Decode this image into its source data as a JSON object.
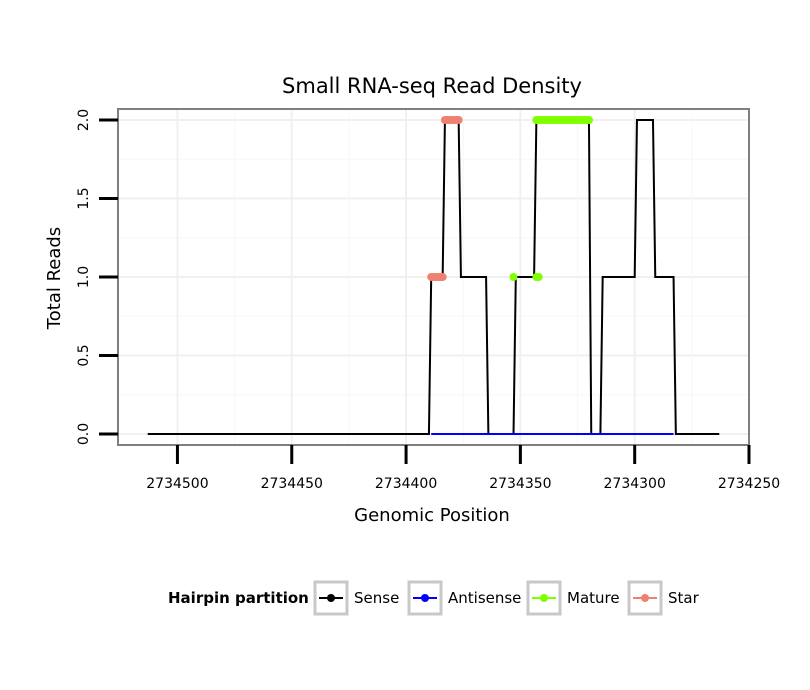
{
  "chart_data": {
    "type": "line",
    "title": "Small RNA-seq Read Density",
    "xlabel": "Genomic Position",
    "ylabel": "Total Reads",
    "x_reversed": true,
    "xlim": [
      2734526,
      2734250
    ],
    "ylim": [
      -0.07,
      2.07
    ],
    "x_ticks": [
      2734500,
      2734450,
      2734400,
      2734350,
      2734300,
      2734250
    ],
    "x_tick_labels": [
      "2734500",
      "2734450",
      "2734400",
      "2734350",
      "2734300",
      "2734250"
    ],
    "y_ticks": [
      0.0,
      0.5,
      1.0,
      1.5,
      2.0
    ],
    "y_tick_labels": [
      "0.0",
      "0.5",
      "1.0",
      "1.5",
      "2.0"
    ],
    "grid": true,
    "series": [
      {
        "name": "Sense",
        "color": "#000000",
        "x": [
          2734513,
          2734390,
          2734389,
          2734384,
          2734383,
          2734377,
          2734376,
          2734365,
          2734364,
          2734353,
          2734352,
          2734344,
          2734343,
          2734320,
          2734319,
          2734315,
          2734314,
          2734300,
          2734299,
          2734292,
          2734291,
          2734283,
          2734282,
          2734263
        ],
        "y": [
          0,
          0,
          1,
          1,
          2,
          2,
          1,
          1,
          0,
          0,
          1,
          1,
          2,
          2,
          0,
          0,
          1,
          1,
          2,
          2,
          1,
          1,
          0,
          0
        ]
      },
      {
        "name": "Antisense",
        "color": "#0000ff",
        "x": [
          2734389,
          2734365,
          2734352,
          2734343,
          2734319,
          2734283
        ],
        "y": [
          0,
          0,
          0,
          0,
          0,
          0
        ]
      },
      {
        "name": "Mature",
        "color": "#7fff00",
        "x": [
          2734353,
          2734343,
          2734342,
          2734341,
          2734340,
          2734339,
          2734338,
          2734337,
          2734336,
          2734335,
          2734334,
          2734333,
          2734332,
          2734331,
          2734330,
          2734329,
          2734328,
          2734327,
          2734326,
          2734325,
          2734324,
          2734323,
          2734322,
          2734321,
          2734320,
          2734342,
          2734343
        ],
        "y": [
          1,
          2,
          2,
          2,
          2,
          2,
          2,
          2,
          2,
          2,
          2,
          2,
          2,
          2,
          2,
          2,
          2,
          2,
          2,
          2,
          2,
          2,
          2,
          2,
          2,
          1,
          1
        ]
      },
      {
        "name": "Star",
        "color": "#f08070",
        "x": [
          2734389,
          2734388,
          2734387,
          2734386,
          2734385,
          2734384,
          2734383,
          2734382,
          2734381,
          2734380,
          2734379,
          2734378,
          2734377
        ],
        "y": [
          1,
          1,
          1,
          1,
          1,
          1,
          2,
          2,
          2,
          2,
          2,
          2,
          2
        ]
      }
    ],
    "legend": {
      "title": "Hairpin partition",
      "position": "bottom",
      "entries": [
        "Sense",
        "Antisense",
        "Mature",
        "Star"
      ]
    }
  }
}
